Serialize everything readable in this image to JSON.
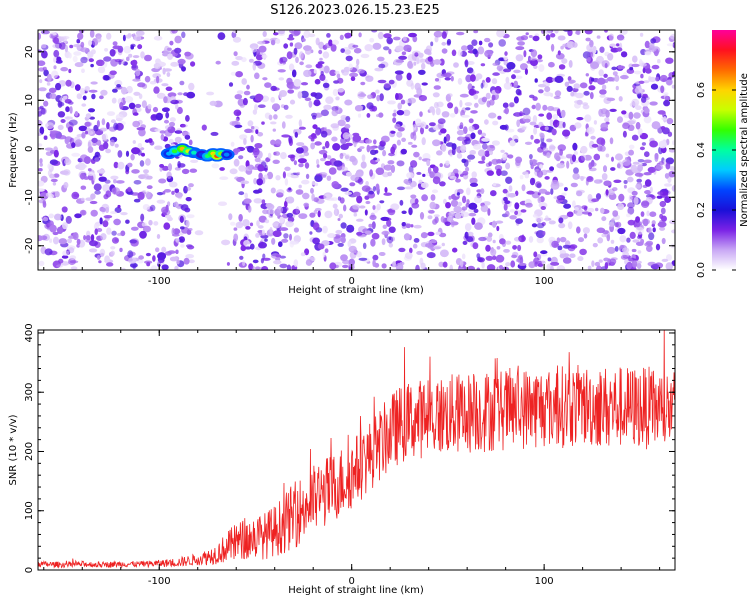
{
  "title": "S126.2023.026.15.23.E25",
  "chart_data": [
    {
      "type": "heatmap",
      "xlabel": "Height of straight line (km)",
      "ylabel": "Frequency (Hz)",
      "xlim": [
        -163,
        168
      ],
      "ylim": [
        -25,
        24.5
      ],
      "x_ticks": [
        -100,
        0,
        100
      ],
      "y_ticks": [
        -20,
        -10,
        0,
        10,
        20
      ],
      "colorbar": {
        "label": "Normalized spectral amplitude",
        "range": [
          0,
          0.8
        ],
        "ticks": [
          0.0,
          0.2,
          0.4,
          0.6
        ],
        "colors": [
          "#ffffff",
          "#c9a8f5",
          "#7a22e6",
          "#1a10d8",
          "#0044ff",
          "#00ccff",
          "#00ffa0",
          "#33ff00",
          "#c8ff00",
          "#ffd400",
          "#ff6a00",
          "#ff1020",
          "#ff0099"
        ]
      },
      "noise_floor_amplitude": 0.12,
      "signal": [
        {
          "x": -95,
          "y": -1.0,
          "v": 0.32
        },
        {
          "x": -92,
          "y": -0.5,
          "v": 0.45
        },
        {
          "x": -88,
          "y": 0.0,
          "v": 0.62
        },
        {
          "x": -85,
          "y": -0.5,
          "v": 0.55
        },
        {
          "x": -82,
          "y": -0.8,
          "v": 0.38
        },
        {
          "x": -78,
          "y": -1.2,
          "v": 0.25
        },
        {
          "x": -75,
          "y": -1.5,
          "v": 0.42
        },
        {
          "x": -72,
          "y": -1.0,
          "v": 0.6
        },
        {
          "x": -70,
          "y": -1.5,
          "v": 0.7
        },
        {
          "x": -68,
          "y": -1.0,
          "v": 0.5
        },
        {
          "x": -65,
          "y": -1.2,
          "v": 0.3
        }
      ],
      "blank_band_x": [
        -83,
        -62
      ]
    },
    {
      "type": "line",
      "xlabel": "Height of straight line (km)",
      "ylabel": "SNR (10 * v/v)",
      "xlim": [
        -163,
        168
      ],
      "ylim": [
        0,
        405
      ],
      "x_ticks": [
        -100,
        0,
        100
      ],
      "y_ticks": [
        0,
        100,
        200,
        300,
        400
      ],
      "series": [
        {
          "color": "#ee2222",
          "x": [
            -163,
            -150,
            -140,
            -130,
            -120,
            -110,
            -100,
            -90,
            -80,
            -75,
            -70,
            -65,
            -60,
            -55,
            -50,
            -45,
            -40,
            -35,
            -30,
            -25,
            -20,
            -15,
            -10,
            -5,
            0,
            5,
            10,
            15,
            20,
            25,
            30,
            40,
            50,
            60,
            70,
            80,
            90,
            100,
            110,
            120,
            130,
            140,
            150,
            160,
            168
          ],
          "y": [
            10,
            9,
            10,
            9,
            10,
            10,
            11,
            13,
            18,
            22,
            28,
            38,
            48,
            52,
            55,
            58,
            66,
            78,
            92,
            105,
            118,
            128,
            138,
            150,
            162,
            178,
            195,
            212,
            232,
            245,
            252,
            258,
            262,
            265,
            268,
            271,
            273,
            275,
            276,
            277,
            276,
            275,
            274,
            272,
            270
          ],
          "spread": [
            5,
            5,
            5,
            5,
            5,
            5,
            6,
            8,
            10,
            14,
            18,
            26,
            32,
            36,
            38,
            40,
            44,
            50,
            56,
            58,
            60,
            60,
            60,
            60,
            60,
            60,
            60,
            62,
            65,
            66,
            67,
            68,
            69,
            70,
            70,
            70,
            70,
            70,
            70,
            70,
            70,
            70,
            70,
            70,
            70
          ]
        }
      ]
    }
  ]
}
